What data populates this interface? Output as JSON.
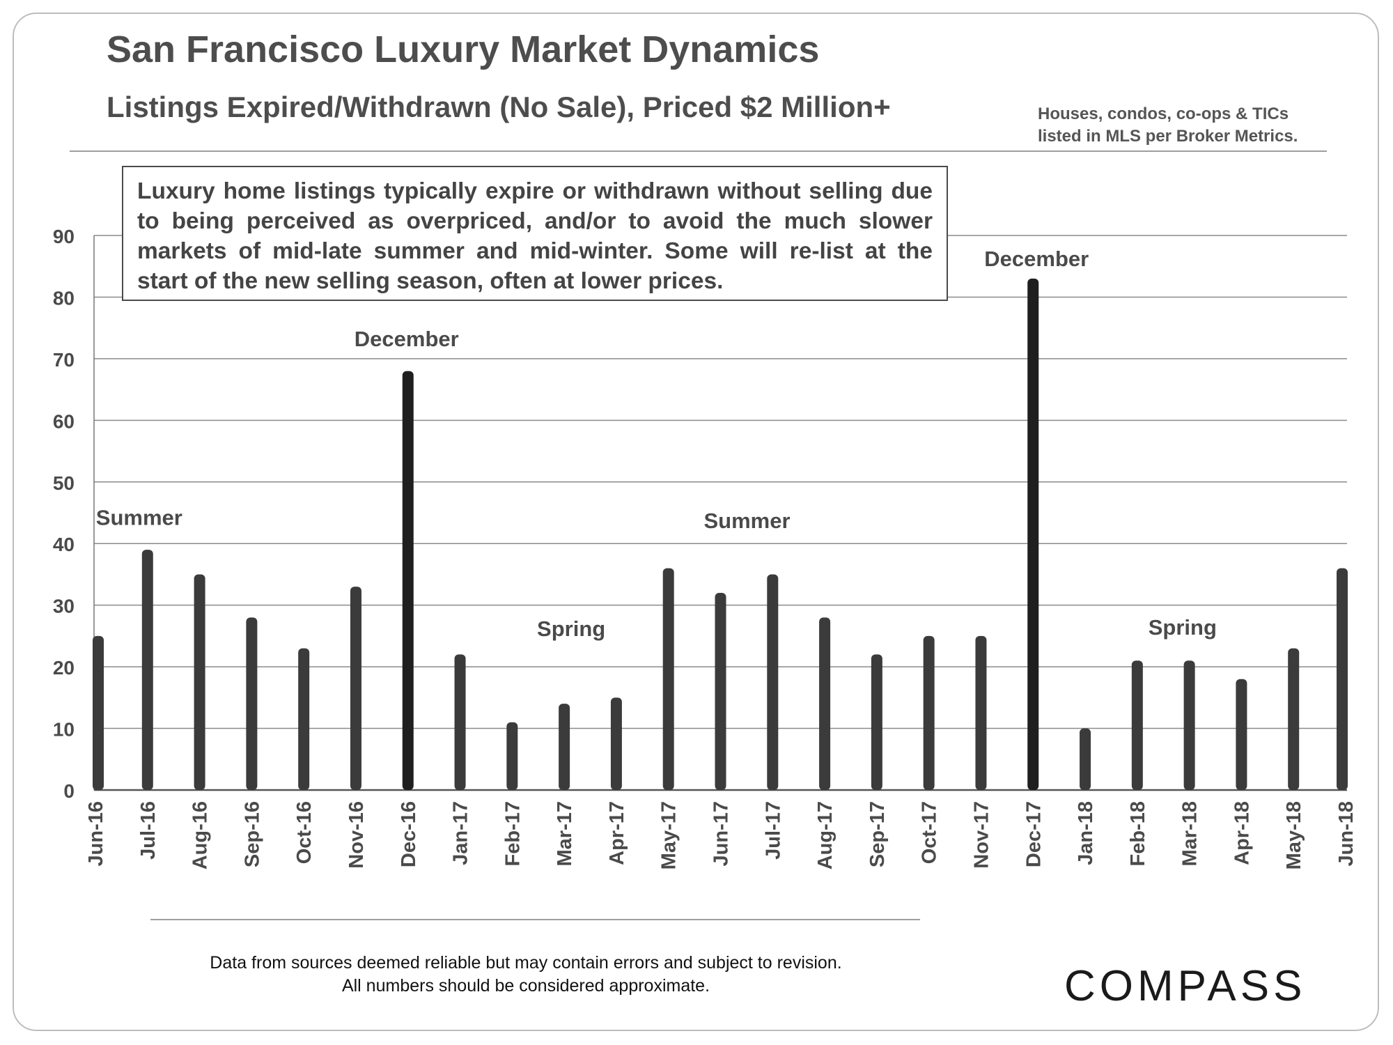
{
  "header": {
    "title": "San Francisco Luxury Market Dynamics",
    "subtitle": "Listings Expired/Withdrawn (No Sale), Priced $2 Million+",
    "scope_note_line1": "Houses, condos, co-ops & TICs",
    "scope_note_line2": "listed in MLS per Broker Metrics."
  },
  "callout": {
    "text": "Luxury home listings typically expire or withdrawn without selling due to being perceived as overpriced, and/or to avoid the much slower markets of mid-late summer and mid-winter. Some will re-list at the start of the new selling season, often at lower prices."
  },
  "footer": {
    "disclaimer_line1": "Data from sources deemed reliable but may contain errors and subject to revision.",
    "disclaimer_line2": "All numbers should be considered approximate.",
    "logo": "COMPASS"
  },
  "colors": {
    "bar": "#3b3b3b",
    "bar_highlight": "#1f1f1f",
    "grid": "#8a8a8a",
    "text": "#4a4a4a"
  },
  "chart_data": {
    "type": "bar",
    "title": "Listings Expired/Withdrawn (No Sale), Priced $2 Million+",
    "xlabel": "",
    "ylabel": "",
    "ylim": [
      0,
      90
    ],
    "yticks": [
      0,
      10,
      20,
      30,
      40,
      50,
      60,
      70,
      80,
      90
    ],
    "grid": true,
    "categories": [
      "Jun-16",
      "Jul-16",
      "Aug-16",
      "Sep-16",
      "Oct-16",
      "Nov-16",
      "Dec-16",
      "Jan-17",
      "Feb-17",
      "Mar-17",
      "Apr-17",
      "May-17",
      "Jun-17",
      "Jul-17",
      "Aug-17",
      "Sep-17",
      "Oct-17",
      "Nov-17",
      "Dec-17",
      "Jan-18",
      "Feb-18",
      "Mar-18",
      "Apr-18",
      "May-18",
      "Jun-18"
    ],
    "values": [
      25,
      39,
      35,
      28,
      23,
      33,
      68,
      22,
      11,
      14,
      15,
      36,
      32,
      35,
      28,
      22,
      25,
      25,
      83,
      10,
      21,
      21,
      18,
      23,
      36
    ],
    "highlighted": [
      "Dec-16",
      "Dec-17"
    ],
    "annotations": [
      {
        "text": "Summer",
        "category": "Jul-16",
        "y": 43
      },
      {
        "text": "December",
        "category": "Dec-16",
        "y": 72
      },
      {
        "text": "Spring",
        "category": "Mar-17",
        "y": 25
      },
      {
        "text": "Summer",
        "category": "Jun-17",
        "y": 42.5
      },
      {
        "text": "December",
        "category": "Dec-17",
        "y": 85
      },
      {
        "text": "Spring",
        "category": "Feb-18",
        "y": 25.2
      }
    ]
  }
}
